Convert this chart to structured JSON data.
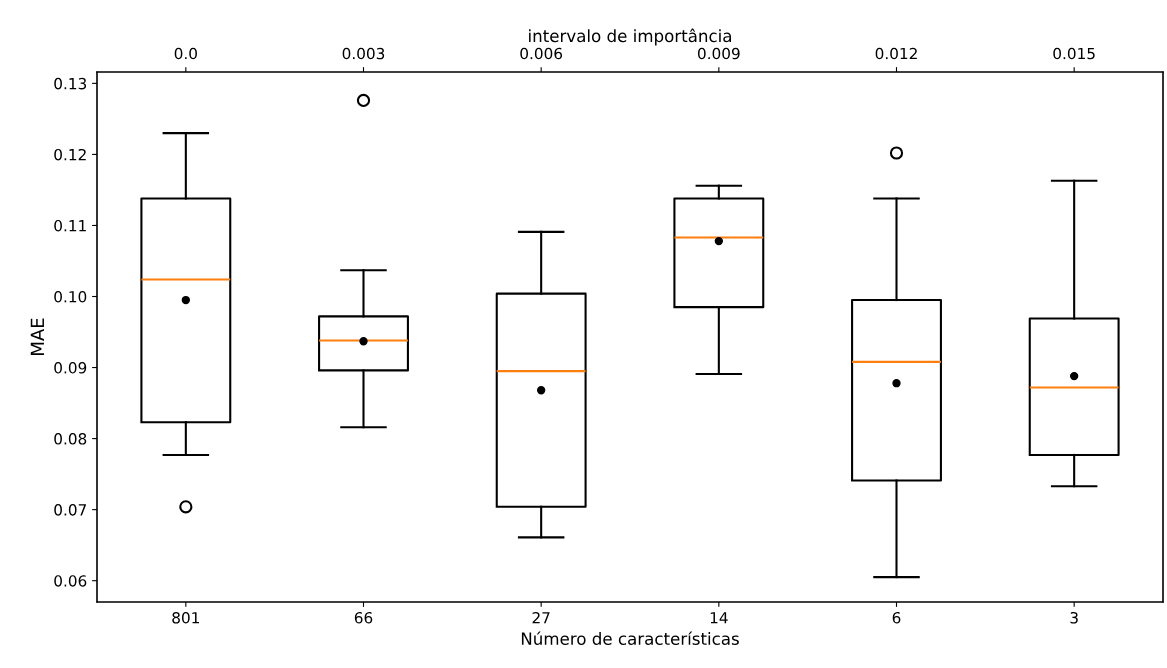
{
  "chart_data": {
    "type": "box",
    "xlabel": "Número de características",
    "ylabel": "MAE",
    "x2label": "intervalo de importância",
    "categories": [
      "801",
      "66",
      "27",
      "14",
      "6",
      "3"
    ],
    "boxes": [
      {
        "low": 0.0777,
        "q1": 0.0823,
        "median": 0.1024,
        "q3": 0.1138,
        "high": 0.123,
        "mean": 0.0995,
        "outliers": [
          0.0704
        ]
      },
      {
        "low": 0.0816,
        "q1": 0.0896,
        "median": 0.0938,
        "q3": 0.0972,
        "high": 0.1037,
        "mean": 0.0937,
        "outliers": [
          0.1276
        ]
      },
      {
        "low": 0.0661,
        "q1": 0.0704,
        "median": 0.0895,
        "q3": 0.1004,
        "high": 0.1091,
        "mean": 0.0868
      },
      {
        "low": 0.0891,
        "q1": 0.0985,
        "median": 0.1083,
        "q3": 0.1138,
        "high": 0.1156,
        "mean": 0.1078
      },
      {
        "low": 0.0605,
        "q1": 0.0741,
        "median": 0.0908,
        "q3": 0.0995,
        "high": 0.1138,
        "mean": 0.0878,
        "outliers": [
          0.1202
        ]
      },
      {
        "low": 0.0733,
        "q1": 0.0777,
        "median": 0.0872,
        "q3": 0.0969,
        "high": 0.1163,
        "mean": 0.0888
      }
    ],
    "color": "#000000",
    "ylim": [
      0.057,
      0.1316
    ],
    "yticks": [
      {
        "value": 0.06,
        "label": "0.06"
      },
      {
        "value": 0.07,
        "label": "0.07"
      },
      {
        "value": 0.08,
        "label": "0.08"
      },
      {
        "value": 0.09,
        "label": "0.09"
      },
      {
        "value": 0.1,
        "label": "0.10"
      },
      {
        "value": 0.11,
        "label": "0.11"
      },
      {
        "value": 0.12,
        "label": "0.12"
      },
      {
        "value": 0.13,
        "label": "0.13"
      }
    ],
    "x2lim": [
      -0.0015,
      0.0165
    ],
    "x2ticks": [
      {
        "value": 0,
        "label": "0.0"
      },
      0.003,
      0.006,
      0.009,
      0.012,
      0.015
    ],
    "grid": false,
    "legend": false
  }
}
